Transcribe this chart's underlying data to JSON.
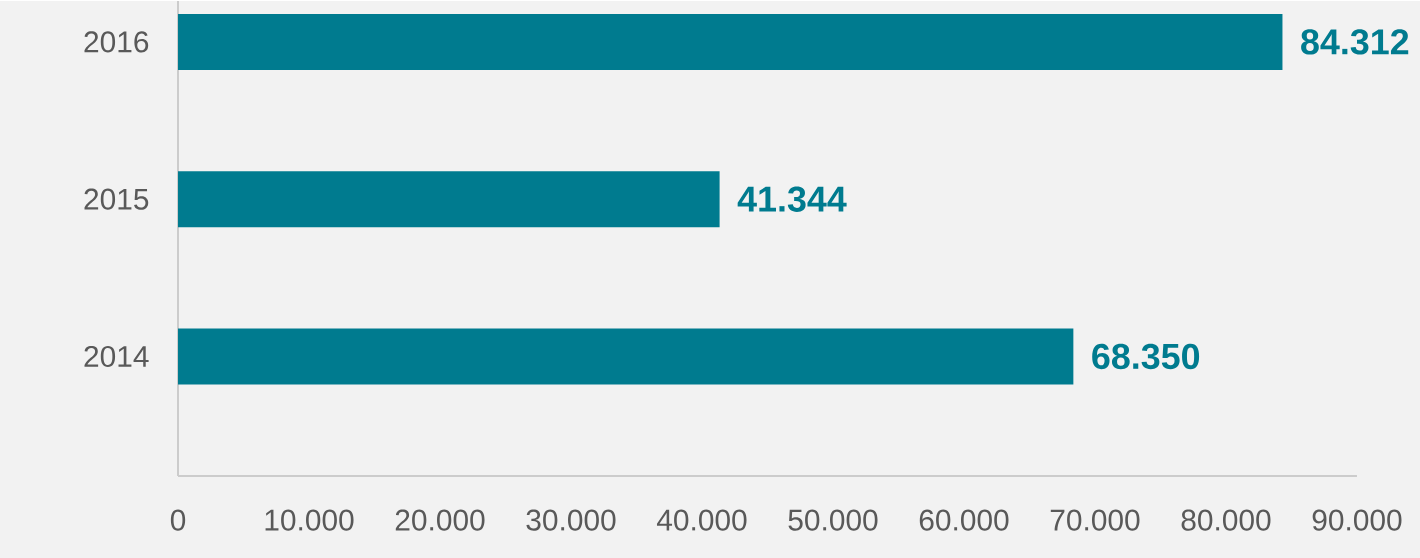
{
  "chart_data": {
    "type": "bar",
    "orientation": "horizontal",
    "categories": [
      "2016",
      "2015",
      "2014"
    ],
    "values": [
      84312,
      41344,
      68350
    ],
    "value_labels": [
      "84.312",
      "41.344",
      "68.350"
    ],
    "color": "#007b8f",
    "xlim": [
      0,
      90000
    ],
    "xticks": [
      0,
      {
        "value": 10000,
        "label": "10.000"
      },
      {
        "value": 20000,
        "label": "20.000"
      },
      {
        "value": 30000,
        "label": "30.000"
      },
      {
        "value": 40000,
        "label": "40.000"
      },
      {
        "value": 50000,
        "label": "50.000"
      },
      {
        "value": 60000,
        "label": "60.000"
      },
      {
        "value": 70000,
        "label": "70.000"
      },
      {
        "value": 80000,
        "label": "80.000"
      },
      {
        "value": 90000,
        "label": "90.000"
      }
    ]
  }
}
